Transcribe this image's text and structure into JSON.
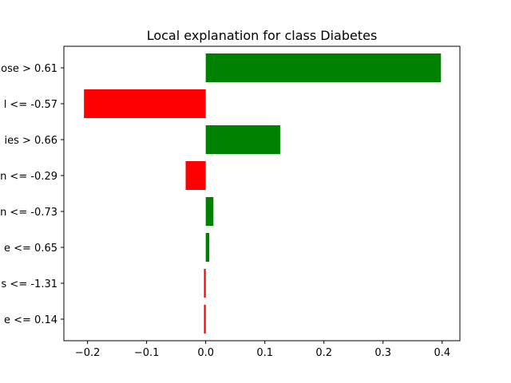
{
  "chart_data": {
    "type": "bar",
    "orientation": "horizontal",
    "title": "Local explanation for class Diabetes",
    "xlabel": "",
    "ylabel": "",
    "xlim": [
      -0.24,
      0.43
    ],
    "x_ticks": [
      -0.2,
      -0.1,
      0.0,
      0.1,
      0.2,
      0.3,
      0.4
    ],
    "x_tick_labels": [
      "−0.2",
      "−0.1",
      "0.0",
      "0.1",
      "0.2",
      "0.3",
      "0.4"
    ],
    "grid": false,
    "positive_color": "#008000",
    "negative_color": "#ff0000",
    "categories": [
      "ose > 0.61",
      "l <= -0.57",
      "ies > 0.66",
      "n <= -0.29",
      "n <= -0.73",
      "e <= 0.65",
      "s <= -1.31",
      "e <= 0.14"
    ],
    "values": [
      0.398,
      -0.206,
      0.126,
      -0.034,
      0.013,
      0.006,
      -0.003,
      -0.003
    ]
  }
}
